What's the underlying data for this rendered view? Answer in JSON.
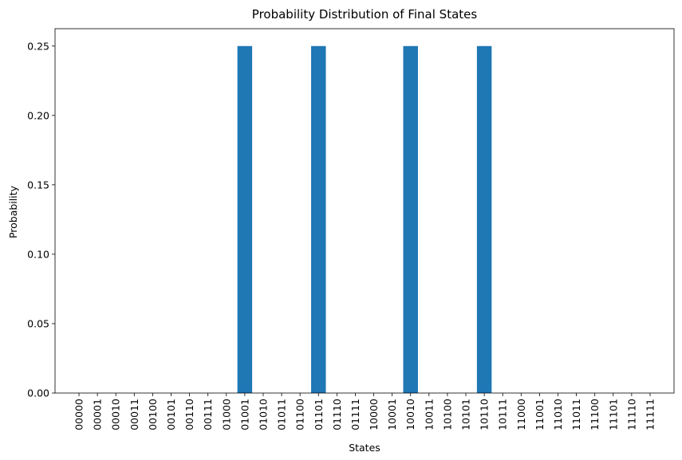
{
  "chart_data": {
    "type": "bar",
    "title": "Probability Distribution of Final States",
    "xlabel": "States",
    "ylabel": "Probability",
    "categories": [
      "00000",
      "00001",
      "00010",
      "00011",
      "00100",
      "00101",
      "00110",
      "00111",
      "01000",
      "01001",
      "01010",
      "01011",
      "01100",
      "01101",
      "01110",
      "01111",
      "10000",
      "10001",
      "10010",
      "10011",
      "10100",
      "10101",
      "10110",
      "10111",
      "11000",
      "11001",
      "11010",
      "11011",
      "11100",
      "11101",
      "11110",
      "11111"
    ],
    "values": [
      0,
      0,
      0,
      0,
      0,
      0,
      0,
      0,
      0,
      0.25,
      0,
      0,
      0,
      0.25,
      0,
      0,
      0,
      0,
      0.25,
      0,
      0,
      0,
      0.25,
      0,
      0,
      0,
      0,
      0,
      0,
      0,
      0,
      0
    ],
    "ylim": [
      0,
      0.2625
    ],
    "yticks": [
      0.0,
      0.05,
      0.1,
      0.15,
      0.2,
      0.25
    ],
    "ytick_labels": [
      "0.00",
      "0.05",
      "0.10",
      "0.15",
      "0.20",
      "0.25"
    ],
    "bar_color": "#1f77b4",
    "grid": false,
    "legend": "none"
  }
}
